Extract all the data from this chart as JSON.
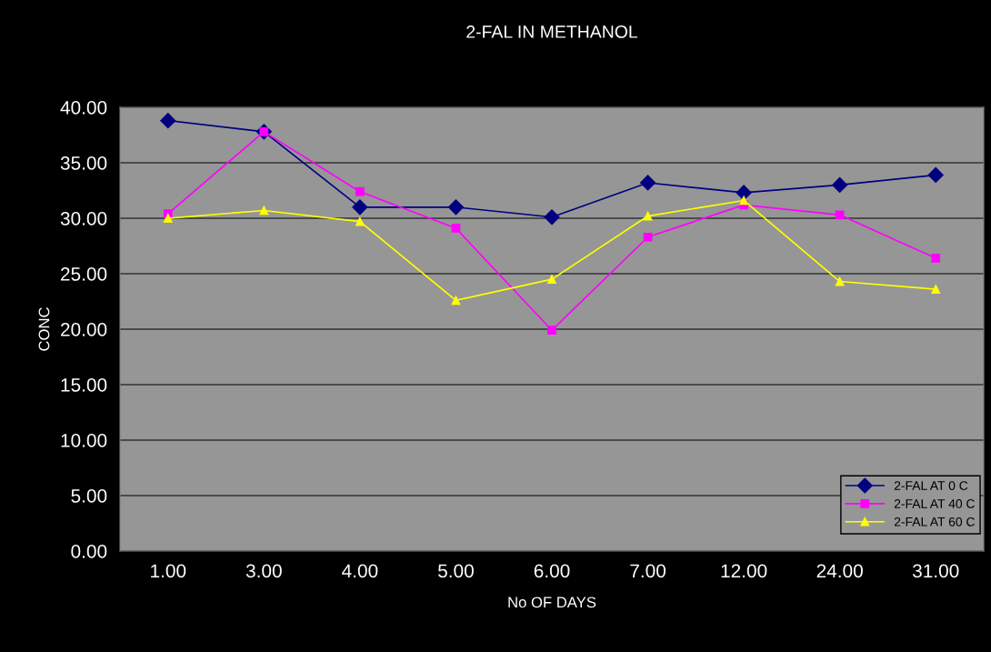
{
  "chart_data": {
    "type": "line",
    "title": "2-FAL IN METHANOL",
    "xlabel": "No OF DAYS",
    "ylabel": "CONC",
    "categories": [
      "1.00",
      "3.00",
      "4.00",
      "5.00",
      "6.00",
      "7.00",
      "12.00",
      "24.00",
      "31.00"
    ],
    "series": [
      {
        "name": "2-FAL AT 0 C",
        "color": "#000080",
        "marker": "diamond",
        "values": [
          38.8,
          37.8,
          31.0,
          31.0,
          30.1,
          33.2,
          32.3,
          33.0,
          33.9
        ]
      },
      {
        "name": "2-FAL AT 40 C",
        "color": "#ff00ff",
        "marker": "square",
        "values": [
          30.4,
          37.8,
          32.4,
          29.1,
          19.9,
          28.3,
          31.2,
          30.3,
          26.4
        ]
      },
      {
        "name": "2-FAL AT 60 C",
        "color": "#ffff00",
        "marker": "triangle",
        "values": [
          30.0,
          30.7,
          29.7,
          22.6,
          24.5,
          30.2,
          31.6,
          24.3,
          23.6
        ]
      }
    ],
    "ylim": [
      0,
      40
    ],
    "yticks": [
      {
        "value": 0,
        "label": "0.00"
      },
      {
        "value": 5,
        "label": "5.00"
      },
      {
        "value": 10,
        "label": "10.00"
      },
      {
        "value": 15,
        "label": "15.00"
      },
      {
        "value": 20,
        "label": "20.00"
      },
      {
        "value": 25,
        "label": "25.00"
      },
      {
        "value": 30,
        "label": "30.00"
      },
      {
        "value": 35,
        "label": "35.00"
      },
      {
        "value": 40,
        "label": "40.00"
      }
    ],
    "grid": "y",
    "legend": "bottom right",
    "line_style": "solid"
  }
}
